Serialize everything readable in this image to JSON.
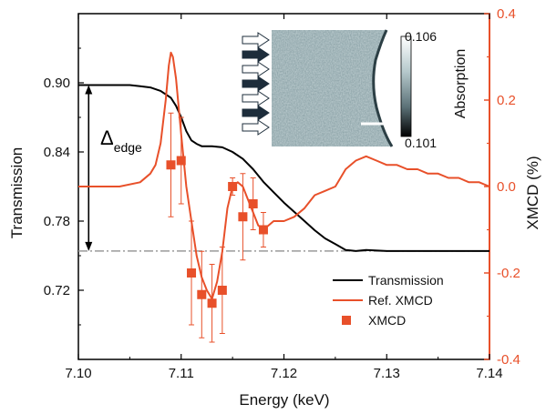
{
  "chart_data": {
    "type": "line",
    "xlabel": "Energy (keV)",
    "ylabel_left": "Transmission",
    "ylabel_right": "XMCD (%)",
    "xlim": [
      7.1,
      7.14
    ],
    "ylim_left": [
      0.66,
      0.96
    ],
    "ylim_right": [
      -0.4,
      0.4
    ],
    "x_ticks": [
      "7.10",
      "7.11",
      "7.12",
      "7.13",
      "7.14"
    ],
    "y_left_ticks": [
      "0.72",
      "0.78",
      "0.84",
      "0.90"
    ],
    "y_right_ticks": [
      "-0.4",
      "-0.2",
      "0.0",
      "0.2",
      "0.4"
    ],
    "series": [
      {
        "name": "Transmission",
        "axis": "left",
        "color": "#000000",
        "x": [
          7.1,
          7.102,
          7.104,
          7.105,
          7.106,
          7.107,
          7.108,
          7.109,
          7.1095,
          7.11,
          7.1105,
          7.111,
          7.1115,
          7.112,
          7.113,
          7.114,
          7.115,
          7.116,
          7.117,
          7.118,
          7.119,
          7.12,
          7.121,
          7.122,
          7.123,
          7.124,
          7.125,
          7.126,
          7.127,
          7.128,
          7.13,
          7.135,
          7.14
        ],
        "y": [
          0.898,
          0.898,
          0.898,
          0.898,
          0.897,
          0.896,
          0.893,
          0.887,
          0.88,
          0.87,
          0.858,
          0.85,
          0.847,
          0.845,
          0.845,
          0.844,
          0.84,
          0.834,
          0.825,
          0.814,
          0.805,
          0.796,
          0.788,
          0.78,
          0.772,
          0.765,
          0.76,
          0.755,
          0.754,
          0.755,
          0.754,
          0.754,
          0.754
        ]
      },
      {
        "name": "Ref. XMCD",
        "axis": "right",
        "color": "#E8502A",
        "x": [
          7.1,
          7.104,
          7.106,
          7.107,
          7.1075,
          7.108,
          7.1085,
          7.1088,
          7.109,
          7.1092,
          7.1095,
          7.11,
          7.1105,
          7.111,
          7.1115,
          7.112,
          7.1125,
          7.113,
          7.1135,
          7.114,
          7.1145,
          7.115,
          7.1155,
          7.116,
          7.1165,
          7.117,
          7.1175,
          7.118,
          7.1185,
          7.119,
          7.12,
          7.121,
          7.122,
          7.123,
          7.124,
          7.125,
          7.126,
          7.127,
          7.128,
          7.129,
          7.13,
          7.131,
          7.132,
          7.133,
          7.134,
          7.135,
          7.136,
          7.137,
          7.138,
          7.139,
          7.14
        ],
        "y": [
          0.0,
          0.0,
          0.01,
          0.03,
          0.05,
          0.1,
          0.2,
          0.28,
          0.31,
          0.3,
          0.25,
          0.12,
          0.0,
          -0.08,
          -0.16,
          -0.21,
          -0.24,
          -0.26,
          -0.22,
          -0.15,
          -0.05,
          0.0,
          0.01,
          0.0,
          -0.03,
          -0.06,
          -0.09,
          -0.1,
          -0.09,
          -0.08,
          -0.08,
          -0.07,
          -0.05,
          -0.02,
          -0.01,
          0.0,
          0.04,
          0.06,
          0.07,
          0.06,
          0.05,
          0.05,
          0.04,
          0.04,
          0.03,
          0.03,
          0.02,
          0.02,
          0.01,
          0.01,
          0.0
        ]
      },
      {
        "name": "XMCD",
        "axis": "right",
        "type": "scatter",
        "marker": "square",
        "color": "#E8502A",
        "x": [
          7.109,
          7.11,
          7.111,
          7.112,
          7.113,
          7.114,
          7.115,
          7.116,
          7.117,
          7.118
        ],
        "y": [
          0.05,
          0.06,
          -0.2,
          -0.25,
          -0.27,
          -0.24,
          0.0,
          -0.07,
          -0.04,
          -0.1
        ],
        "yerr": [
          0.12,
          0.1,
          0.12,
          0.1,
          0.09,
          0.1,
          0.02,
          0.1,
          0.06,
          0.04
        ]
      }
    ],
    "reference_line": {
      "axis": "left",
      "y": 0.754,
      "color": "#9a9a9a",
      "style": "dash-dot"
    },
    "annotation": {
      "label": "Δ",
      "subscript": "edge",
      "from": 0.898,
      "to": 0.754,
      "x": 7.101
    },
    "legend": {
      "placement": "bottom-right",
      "items": [
        "Transmission",
        "Ref. XMCD",
        "XMCD"
      ]
    },
    "inset": {
      "type": "heatmap",
      "colorbar_label": "Absorption",
      "colorbar_max": "0.106",
      "colorbar_min": "0.101",
      "arrows": [
        "open",
        "filled",
        "open",
        "filled",
        "open",
        "filled",
        "open"
      ]
    }
  }
}
